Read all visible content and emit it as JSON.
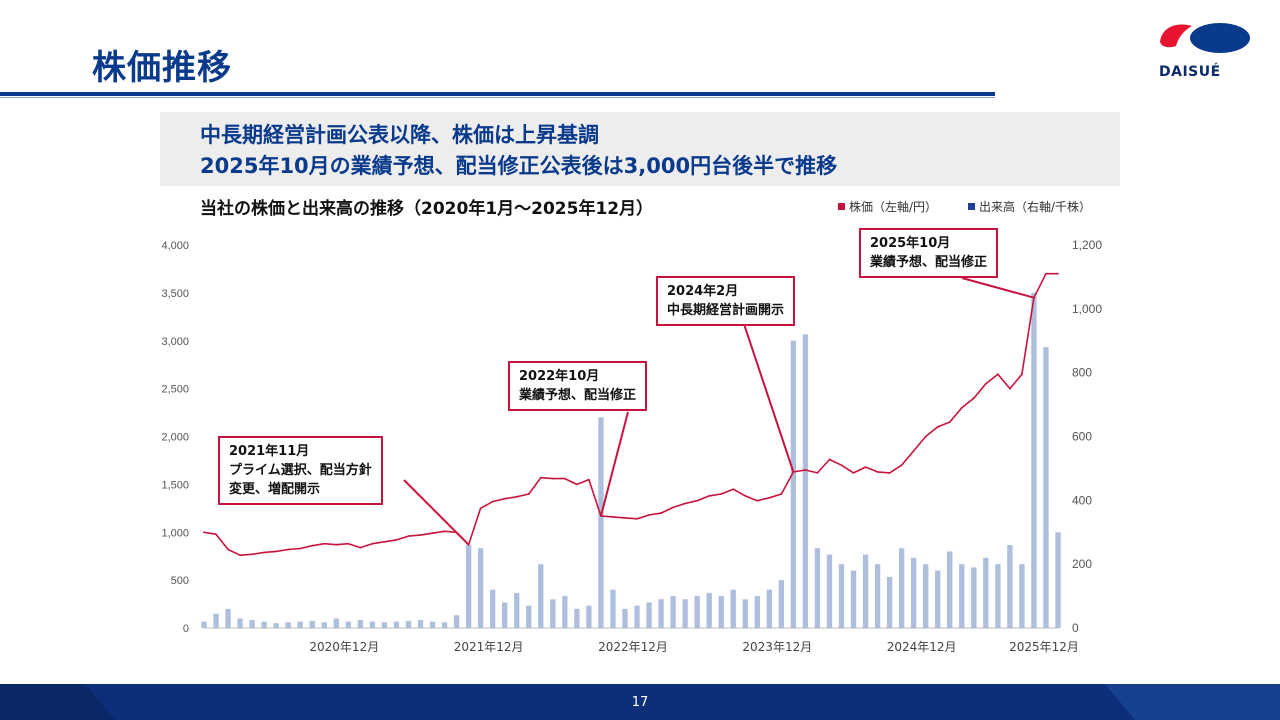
{
  "page": {
    "title": "株価推移",
    "headline": [
      "中長期経営計画公表以降、株価は上昇基調",
      "2025年10月の業績予想、配当修正公表後は3,000円台後半で推移"
    ],
    "page_number": "17",
    "logo_text": "DAISUÉ"
  },
  "colors": {
    "brand_blue": "#0a3a8c",
    "price_line": "#c8143c",
    "volume_bar": "#9fb4d6",
    "legend_volume": "#1f3f9a",
    "callout_border": "#c8143c"
  },
  "chart_data": {
    "type": "line",
    "title": "当社の株価と出来高の推移（2020年1月〜2025年12月）",
    "legend": [
      {
        "label": "株価（左軸/円）",
        "color": "#c8143c"
      },
      {
        "label": "出来高（右軸/千株）",
        "color": "#1f3f9a"
      }
    ],
    "legend_position": "top-right",
    "grid": false,
    "x_range": [
      "2020-01",
      "2025-12"
    ],
    "x_ticks": [
      {
        "label": "2020年12月",
        "date": "2020-12"
      },
      {
        "label": "2021年12月",
        "date": "2021-12"
      },
      {
        "label": "2022年12月",
        "date": "2022-12"
      },
      {
        "label": "2023年12月",
        "date": "2023-12"
      },
      {
        "label": "2024年12月",
        "date": "2024-12"
      },
      {
        "label": "2025年12月",
        "date": "2025-12"
      }
    ],
    "y_left": {
      "min": 0,
      "max": 4000,
      "ticks": [
        "0",
        "500",
        "1,000",
        "1,500",
        "2,000",
        "2,500",
        "3,000",
        "3,500",
        "4,000"
      ]
    },
    "y_right": {
      "min": 0,
      "max": 1200,
      "ticks": [
        "0",
        "200",
        "400",
        "600",
        "800",
        "1,000",
        "1,200"
      ]
    },
    "series": [
      {
        "name": "株価（左軸/円）",
        "axis": "left",
        "style": "line",
        "points": [
          [
            "2020-01",
            1000
          ],
          [
            "2020-02",
            980
          ],
          [
            "2020-03",
            820
          ],
          [
            "2020-04",
            760
          ],
          [
            "2020-05",
            770
          ],
          [
            "2020-06",
            790
          ],
          [
            "2020-07",
            800
          ],
          [
            "2020-08",
            820
          ],
          [
            "2020-09",
            830
          ],
          [
            "2020-10",
            860
          ],
          [
            "2020-11",
            880
          ],
          [
            "2020-12",
            870
          ],
          [
            "2021-01",
            880
          ],
          [
            "2021-02",
            840
          ],
          [
            "2021-03",
            880
          ],
          [
            "2021-04",
            900
          ],
          [
            "2021-05",
            920
          ],
          [
            "2021-06",
            960
          ],
          [
            "2021-07",
            970
          ],
          [
            "2021-08",
            990
          ],
          [
            "2021-09",
            1010
          ],
          [
            "2021-10",
            1000
          ],
          [
            "2021-11",
            870
          ],
          [
            "2021-12",
            1250
          ],
          [
            "2022-01",
            1320
          ],
          [
            "2022-02",
            1350
          ],
          [
            "2022-03",
            1370
          ],
          [
            "2022-04",
            1400
          ],
          [
            "2022-05",
            1570
          ],
          [
            "2022-06",
            1560
          ],
          [
            "2022-07",
            1560
          ],
          [
            "2022-08",
            1500
          ],
          [
            "2022-09",
            1550
          ],
          [
            "2022-10",
            1170
          ],
          [
            "2022-11",
            1160
          ],
          [
            "2022-12",
            1150
          ],
          [
            "2023-01",
            1140
          ],
          [
            "2023-02",
            1180
          ],
          [
            "2023-03",
            1200
          ],
          [
            "2023-04",
            1260
          ],
          [
            "2023-05",
            1300
          ],
          [
            "2023-06",
            1330
          ],
          [
            "2023-07",
            1380
          ],
          [
            "2023-08",
            1400
          ],
          [
            "2023-09",
            1450
          ],
          [
            "2023-10",
            1380
          ],
          [
            "2023-11",
            1330
          ],
          [
            "2023-12",
            1360
          ],
          [
            "2024-01",
            1400
          ],
          [
            "2024-02",
            1630
          ],
          [
            "2024-03",
            1650
          ],
          [
            "2024-04",
            1620
          ],
          [
            "2024-05",
            1760
          ],
          [
            "2024-06",
            1700
          ],
          [
            "2024-07",
            1620
          ],
          [
            "2024-08",
            1680
          ],
          [
            "2024-09",
            1630
          ],
          [
            "2024-10",
            1620
          ],
          [
            "2024-11",
            1700
          ],
          [
            "2024-12",
            1850
          ],
          [
            "2025-01",
            2000
          ],
          [
            "2025-02",
            2100
          ],
          [
            "2025-03",
            2150
          ],
          [
            "2025-04",
            2300
          ],
          [
            "2025-05",
            2400
          ],
          [
            "2025-06",
            2550
          ],
          [
            "2025-07",
            2650
          ],
          [
            "2025-08",
            2500
          ],
          [
            "2025-09",
            2650
          ],
          [
            "2025-10",
            3450
          ],
          [
            "2025-11",
            3700
          ],
          [
            "2025-12",
            3700
          ]
        ]
      },
      {
        "name": "出来高（右軸/千株）",
        "axis": "right",
        "style": "bar",
        "points": [
          [
            "2020-01",
            20
          ],
          [
            "2020-02",
            45
          ],
          [
            "2020-03",
            60
          ],
          [
            "2020-04",
            30
          ],
          [
            "2020-05",
            25
          ],
          [
            "2020-06",
            20
          ],
          [
            "2020-07",
            15
          ],
          [
            "2020-08",
            18
          ],
          [
            "2020-09",
            20
          ],
          [
            "2020-10",
            22
          ],
          [
            "2020-11",
            18
          ],
          [
            "2020-12",
            30
          ],
          [
            "2021-01",
            20
          ],
          [
            "2021-02",
            25
          ],
          [
            "2021-03",
            20
          ],
          [
            "2021-04",
            18
          ],
          [
            "2021-05",
            20
          ],
          [
            "2021-06",
            22
          ],
          [
            "2021-07",
            25
          ],
          [
            "2021-08",
            20
          ],
          [
            "2021-09",
            18
          ],
          [
            "2021-10",
            40
          ],
          [
            "2021-11",
            260
          ],
          [
            "2021-12",
            250
          ],
          [
            "2022-01",
            120
          ],
          [
            "2022-02",
            80
          ],
          [
            "2022-03",
            110
          ],
          [
            "2022-04",
            70
          ],
          [
            "2022-05",
            200
          ],
          [
            "2022-06",
            90
          ],
          [
            "2022-07",
            100
          ],
          [
            "2022-08",
            60
          ],
          [
            "2022-09",
            70
          ],
          [
            "2022-10",
            660
          ],
          [
            "2022-11",
            120
          ],
          [
            "2022-12",
            60
          ],
          [
            "2023-01",
            70
          ],
          [
            "2023-02",
            80
          ],
          [
            "2023-03",
            90
          ],
          [
            "2023-04",
            100
          ],
          [
            "2023-05",
            90
          ],
          [
            "2023-06",
            100
          ],
          [
            "2023-07",
            110
          ],
          [
            "2023-08",
            100
          ],
          [
            "2023-09",
            120
          ],
          [
            "2023-10",
            90
          ],
          [
            "2023-11",
            100
          ],
          [
            "2023-12",
            120
          ],
          [
            "2024-01",
            150
          ],
          [
            "2024-02",
            900
          ],
          [
            "2024-03",
            920
          ],
          [
            "2024-04",
            250
          ],
          [
            "2024-05",
            230
          ],
          [
            "2024-06",
            200
          ],
          [
            "2024-07",
            180
          ],
          [
            "2024-08",
            230
          ],
          [
            "2024-09",
            200
          ],
          [
            "2024-10",
            160
          ],
          [
            "2024-11",
            250
          ],
          [
            "2024-12",
            220
          ],
          [
            "2025-01",
            200
          ],
          [
            "2025-02",
            180
          ],
          [
            "2025-03",
            240
          ],
          [
            "2025-04",
            200
          ],
          [
            "2025-05",
            190
          ],
          [
            "2025-06",
            220
          ],
          [
            "2025-07",
            200
          ],
          [
            "2025-08",
            260
          ],
          [
            "2025-09",
            200
          ],
          [
            "2025-10",
            1050
          ],
          [
            "2025-11",
            880
          ],
          [
            "2025-12",
            300
          ]
        ]
      }
    ],
    "annotations": [
      {
        "date": "2021-11",
        "lines": [
          "2021年11月",
          "プライム選択、配当方針",
          "変更、増配開示"
        ]
      },
      {
        "date": "2022-10",
        "lines": [
          "2022年10月",
          "業績予想、配当修正"
        ]
      },
      {
        "date": "2024-02",
        "lines": [
          "2024年2月",
          "中長期経営計画開示"
        ]
      },
      {
        "date": "2025-10",
        "lines": [
          "2025年10月",
          "業績予想、配当修正"
        ]
      }
    ]
  }
}
